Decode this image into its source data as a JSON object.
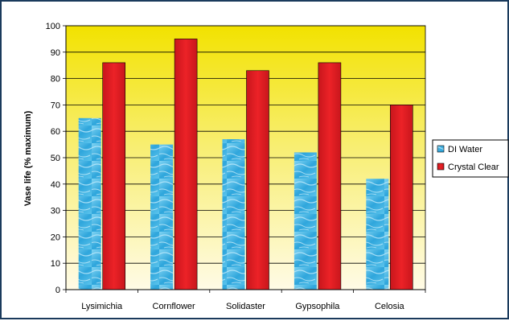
{
  "chart_data": {
    "type": "bar",
    "title": "",
    "xlabel": "",
    "ylabel": "Vase life (% maximum)",
    "ylim": [
      0,
      100
    ],
    "yticks": [
      0,
      10,
      20,
      30,
      40,
      50,
      60,
      70,
      80,
      90,
      100
    ],
    "grid": true,
    "legend_position": "right",
    "categories": [
      "Lysimichia",
      "Cornflower",
      "Solidaster",
      "Gypsophila",
      "Celosia"
    ],
    "series": [
      {
        "name": "DI Water",
        "values": [
          65,
          55,
          57,
          52,
          42
        ],
        "color": "#3aaee0"
      },
      {
        "name": "Crystal Clear",
        "values": [
          86,
          95,
          83,
          86,
          70
        ],
        "color": "#e31e24"
      }
    ],
    "background": {
      "top": "#f2e200",
      "bottom": "#fffbe6"
    }
  }
}
